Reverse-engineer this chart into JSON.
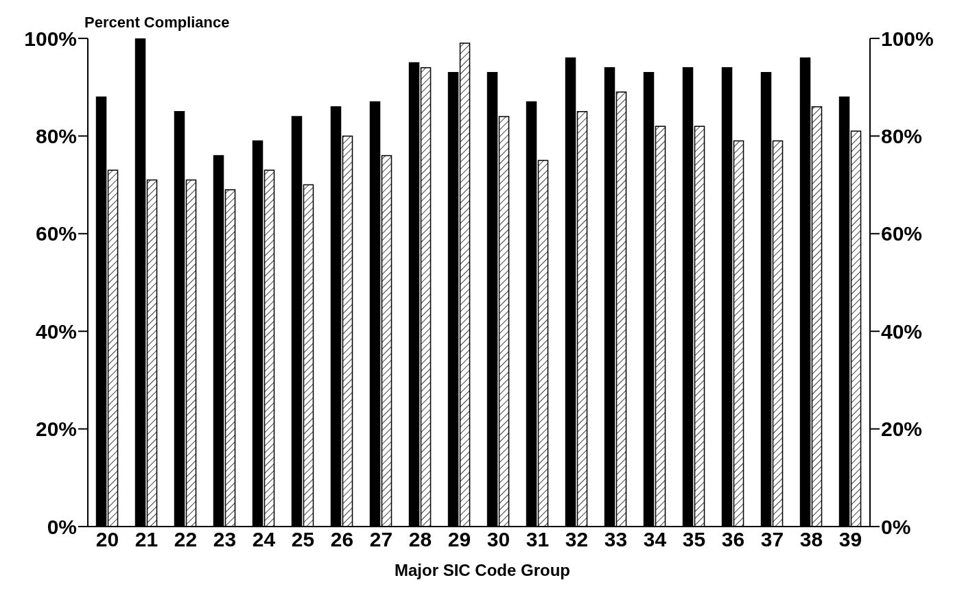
{
  "chart_data": {
    "type": "bar",
    "ylabel": "Percent Compliance",
    "xlabel": "Major SIC Code Group",
    "categories": [
      "20",
      "21",
      "22",
      "23",
      "24",
      "25",
      "26",
      "27",
      "28",
      "29",
      "30",
      "31",
      "32",
      "33",
      "34",
      "35",
      "36",
      "37",
      "38",
      "39"
    ],
    "series": [
      {
        "color": "#000000",
        "values": [
          88,
          100,
          85,
          76,
          79,
          84,
          86,
          87,
          95,
          93,
          93,
          87,
          96,
          94,
          93,
          94,
          94,
          93,
          96,
          88
        ]
      },
      {
        "color": "#000000",
        "values": [
          73,
          71,
          71,
          69,
          73,
          70,
          80,
          76,
          94,
          99,
          84,
          75,
          85,
          89,
          82,
          82,
          79,
          79,
          86,
          81
        ]
      }
    ],
    "ylim": [
      0,
      100
    ],
    "yticks": [
      {
        "value": 0,
        "label": "0%"
      },
      {
        "value": 20,
        "label": "20%"
      },
      {
        "value": 40,
        "label": "40%"
      },
      {
        "value": 60,
        "label": "60%"
      },
      {
        "value": 80,
        "label": "80%"
      },
      {
        "value": 100,
        "label": "100%"
      }
    ],
    "y2lim": [
      0,
      100
    ],
    "y2ticks": [
      {
        "value": 0,
        "label": "0%"
      },
      {
        "value": 20,
        "label": "20%"
      },
      {
        "value": 40,
        "label": "40%"
      },
      {
        "value": 60,
        "label": "60%"
      },
      {
        "value": 80,
        "label": "80%"
      },
      {
        "value": 100,
        "label": "100%"
      }
    ],
    "grid": false,
    "legend": false
  }
}
